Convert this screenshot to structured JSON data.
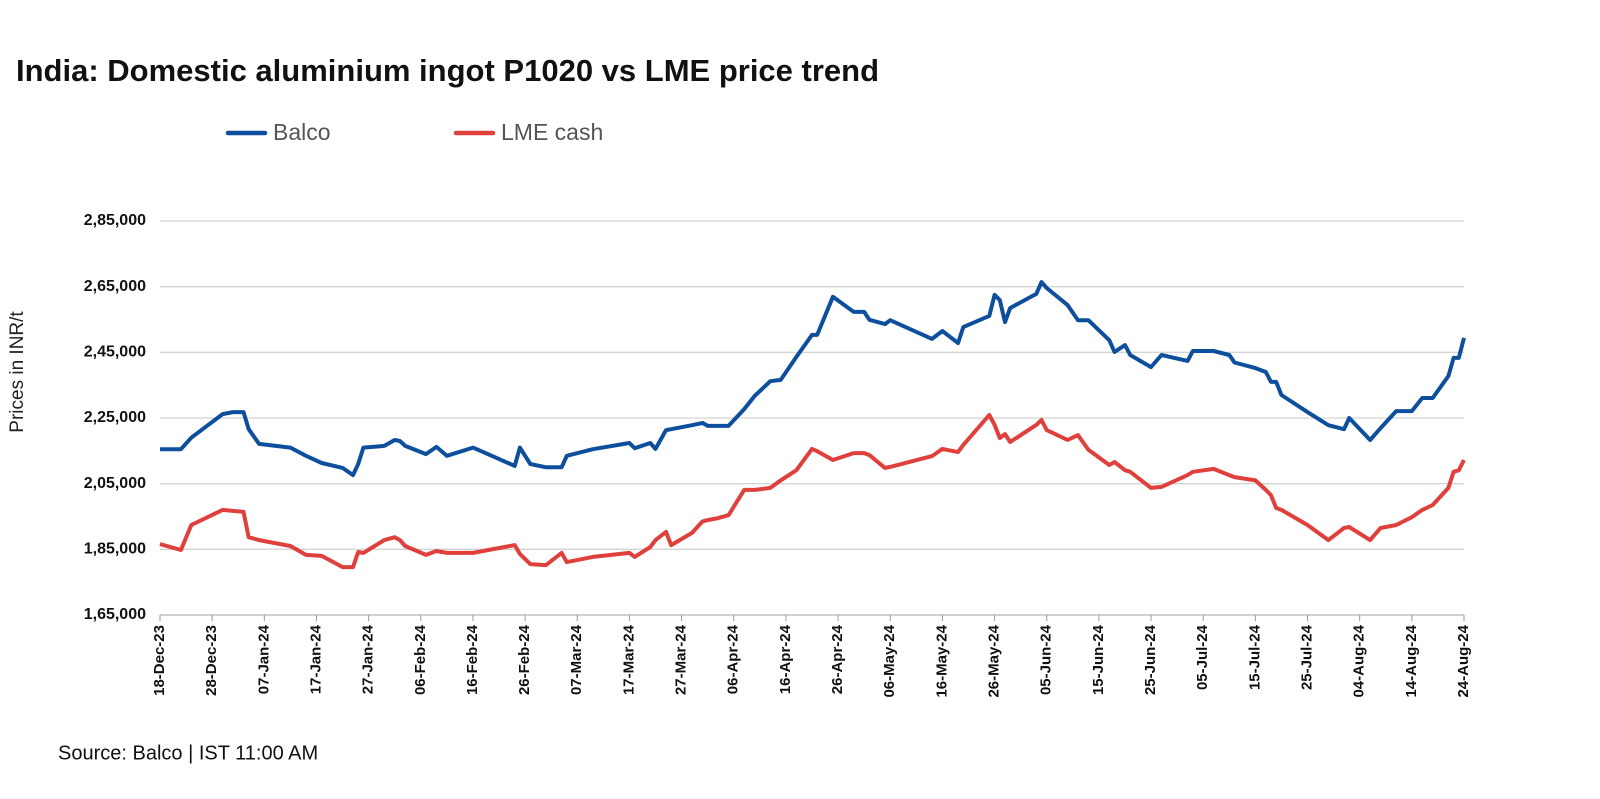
{
  "chart_data": {
    "type": "line",
    "title": "India: Domestic aluminium ingot P1020 vs LME price trend",
    "y_label": "Prices in INR/t",
    "source": "Source: Balco | IST 11:00 AM",
    "grid": true,
    "legend": "top-left",
    "x": [
      "2023-12-18",
      "2023-12-22",
      "2023-12-24",
      "2023-12-30",
      "2024-01-01",
      "2024-01-03",
      "2024-01-04",
      "2024-01-06",
      "2024-01-12",
      "2024-01-15",
      "2024-01-18",
      "2024-01-22",
      "2024-01-24",
      "2024-01-25",
      "2024-01-26",
      "2024-01-30",
      "2024-02-01",
      "2024-02-02",
      "2024-02-03",
      "2024-02-07",
      "2024-02-09",
      "2024-02-11",
      "2024-02-16",
      "2024-02-24",
      "2024-02-25",
      "2024-02-27",
      "2024-03-01",
      "2024-03-04",
      "2024-03-05",
      "2024-03-10",
      "2024-03-17",
      "2024-03-18",
      "2024-03-21",
      "2024-03-22",
      "2024-03-24",
      "2024-03-25",
      "2024-03-29",
      "2024-03-31",
      "2024-04-01",
      "2024-04-03",
      "2024-04-05",
      "2024-04-08",
      "2024-04-10",
      "2024-04-13",
      "2024-04-15",
      "2024-04-18",
      "2024-04-21",
      "2024-04-22",
      "2024-04-25",
      "2024-04-29",
      "2024-05-01",
      "2024-05-02",
      "2024-05-05",
      "2024-05-06",
      "2024-05-14",
      "2024-05-16",
      "2024-05-19",
      "2024-05-20",
      "2024-05-25",
      "2024-05-26",
      "2024-05-27",
      "2024-05-28",
      "2024-05-29",
      "2024-06-03",
      "2024-06-04",
      "2024-06-05",
      "2024-06-09",
      "2024-06-11",
      "2024-06-13",
      "2024-06-17",
      "2024-06-18",
      "2024-06-20",
      "2024-06-21",
      "2024-06-25",
      "2024-06-27",
      "2024-07-02",
      "2024-07-03",
      "2024-07-07",
      "2024-07-10",
      "2024-07-11",
      "2024-07-15",
      "2024-07-17",
      "2024-07-18",
      "2024-07-19",
      "2024-07-20",
      "2024-07-25",
      "2024-07-29",
      "2024-08-01",
      "2024-08-02",
      "2024-08-06",
      "2024-08-08",
      "2024-08-11",
      "2024-08-14",
      "2024-08-16",
      "2024-08-18",
      "2024-08-21",
      "2024-08-22",
      "2024-08-23",
      "2024-08-24"
    ],
    "series": [
      {
        "name": "Balco",
        "color": "#0d4f9c",
        "values": [
          215500,
          215500,
          219000,
          226200,
          226800,
          226800,
          221600,
          217100,
          216000,
          213500,
          211300,
          209800,
          207600,
          211000,
          216000,
          216500,
          218300,
          218000,
          216500,
          214000,
          216200,
          213500,
          216000,
          210400,
          216000,
          211000,
          210000,
          210000,
          213500,
          215500,
          217400,
          215800,
          217400,
          215600,
          221300,
          221600,
          222800,
          223500,
          222600,
          222600,
          222600,
          227700,
          231700,
          236200,
          236600,
          243600,
          250300,
          250300,
          261900,
          257300,
          257300,
          254900,
          253600,
          254800,
          249100,
          251500,
          247800,
          252700,
          256100,
          262500,
          260900,
          254200,
          258500,
          262800,
          266400,
          264600,
          259400,
          254800,
          254800,
          248700,
          245100,
          247200,
          244200,
          240500,
          244200,
          242400,
          245400,
          245400,
          244200,
          241900,
          240200,
          239000,
          236000,
          236000,
          232000,
          226800,
          222800,
          221600,
          225000,
          218300,
          221900,
          227100,
          227100,
          231100,
          231100,
          237800,
          243300,
          243300,
          249400
        ]
      },
      {
        "name": "LME cash",
        "color": "#e0403c",
        "values": [
          186600,
          184800,
          192400,
          197000,
          196700,
          196400,
          188700,
          187800,
          186000,
          183300,
          183000,
          179600,
          179600,
          184200,
          183900,
          187800,
          188700,
          187800,
          186000,
          183300,
          184500,
          183900,
          183900,
          186300,
          183600,
          180500,
          180200,
          183900,
          181100,
          182700,
          183900,
          182700,
          185700,
          187800,
          190300,
          186300,
          190000,
          193500,
          193900,
          194500,
          195400,
          203100,
          203100,
          203700,
          206000,
          209100,
          215600,
          214900,
          212200,
          214300,
          214300,
          213700,
          209800,
          210100,
          213400,
          215600,
          214600,
          216800,
          225900,
          222900,
          218900,
          220100,
          217700,
          222900,
          224400,
          221300,
          218300,
          219800,
          215300,
          210700,
          211600,
          209100,
          208600,
          203700,
          204000,
          207600,
          208600,
          209500,
          207600,
          207000,
          206000,
          203100,
          201500,
          197600,
          197000,
          192400,
          187800,
          191500,
          191800,
          187800,
          191500,
          192400,
          194800,
          197000,
          198500,
          203700,
          208600,
          209100,
          212200
        ]
      }
    ],
    "xlim": [
      "2023-12-18",
      "2024-08-24"
    ],
    "xticks": [
      {
        "value": "2023-12-18",
        "label": "18-Dec-23"
      },
      {
        "value": "2023-12-28",
        "label": "28-Dec-23"
      },
      {
        "value": "2024-01-07",
        "label": "07-Jan-24"
      },
      {
        "value": "2024-01-17",
        "label": "17-Jan-24"
      },
      {
        "value": "2024-01-27",
        "label": "27-Jan-24"
      },
      {
        "value": "2024-02-06",
        "label": "06-Feb-24"
      },
      {
        "value": "2024-02-16",
        "label": "16-Feb-24"
      },
      {
        "value": "2024-02-26",
        "label": "26-Feb-24"
      },
      {
        "value": "2024-03-07",
        "label": "07-Mar-24"
      },
      {
        "value": "2024-03-17",
        "label": "17-Mar-24"
      },
      {
        "value": "2024-03-27",
        "label": "27-Mar-24"
      },
      {
        "value": "2024-04-06",
        "label": "06-Apr-24"
      },
      {
        "value": "2024-04-16",
        "label": "16-Apr-24"
      },
      {
        "value": "2024-04-26",
        "label": "26-Apr-24"
      },
      {
        "value": "2024-05-06",
        "label": "06-May-24"
      },
      {
        "value": "2024-05-16",
        "label": "16-May-24"
      },
      {
        "value": "2024-05-26",
        "label": "26-May-24"
      },
      {
        "value": "2024-06-05",
        "label": "05-Jun-24"
      },
      {
        "value": "2024-06-15",
        "label": "15-Jun-24"
      },
      {
        "value": "2024-06-25",
        "label": "25-Jun-24"
      },
      {
        "value": "2024-07-05",
        "label": "05-Jul-24"
      },
      {
        "value": "2024-07-15",
        "label": "15-Jul-24"
      },
      {
        "value": "2024-07-25",
        "label": "25-Jul-24"
      },
      {
        "value": "2024-08-04",
        "label": "04-Aug-24"
      },
      {
        "value": "2024-08-14",
        "label": "14-Aug-24"
      },
      {
        "value": "2024-08-24",
        "label": "24-Aug-24"
      }
    ],
    "ylim": [
      165000,
      285000
    ],
    "yticks": [
      {
        "value": 165000,
        "label": "1,65,000"
      },
      {
        "value": 185000,
        "label": "1,85,000"
      },
      {
        "value": 205000,
        "label": "2,05,000"
      },
      {
        "value": 225000,
        "label": "2,25,000"
      },
      {
        "value": 245000,
        "label": "2,45,000"
      },
      {
        "value": 265000,
        "label": "2,65,000"
      },
      {
        "value": 285000,
        "label": "2,85,000"
      }
    ]
  }
}
